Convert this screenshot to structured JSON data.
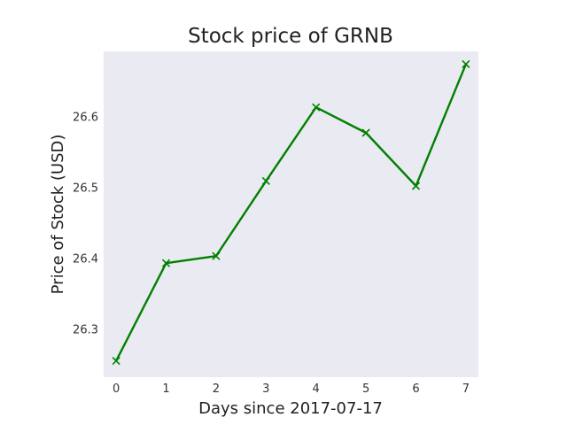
{
  "chart_data": {
    "type": "line",
    "title": "Stock price of GRNB",
    "xlabel": "Days since 2017-07-17",
    "ylabel": "Price of Stock (USD)",
    "x": [
      0,
      1,
      2,
      3,
      4,
      5,
      6,
      7
    ],
    "series": [
      {
        "values": [
          26.255,
          26.393,
          26.403,
          26.509,
          26.613,
          26.577,
          26.502,
          26.674
        ],
        "color": "#008000",
        "marker": "x"
      }
    ],
    "xticks": [
      "0",
      "1",
      "2",
      "3",
      "4",
      "5",
      "6",
      "7"
    ],
    "yticks": [
      "26.3",
      "26.4",
      "26.5",
      "26.6"
    ],
    "xlim": [
      -0.25,
      7.25
    ],
    "ylim": [
      26.232,
      26.692
    ],
    "grid": false,
    "background": "#eaeaf2"
  }
}
